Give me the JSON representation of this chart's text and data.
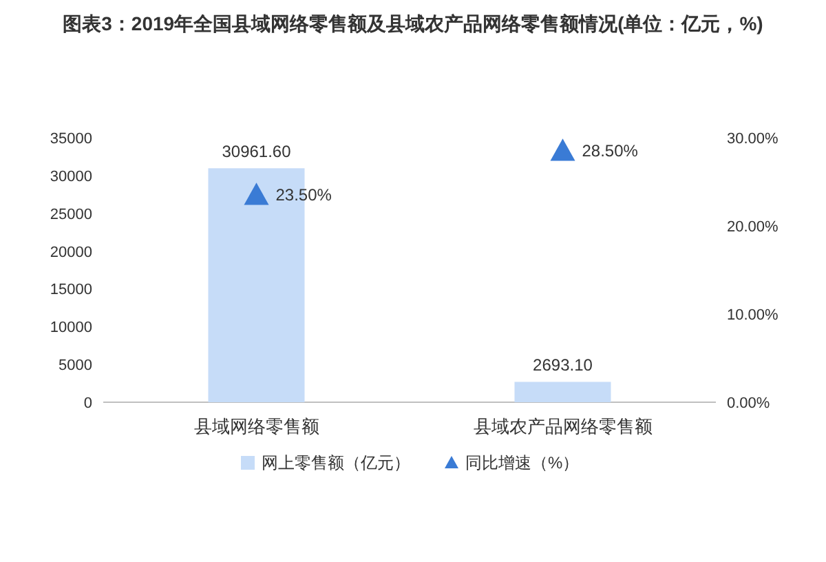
{
  "chart_data": {
    "type": "bar",
    "title": "图表3：2019年全国县域网络零售额及县域农产品网络零售额情况(单位：亿元，%)",
    "categories": [
      "县域网络零售额",
      "县域农产品网络零售额"
    ],
    "series": [
      {
        "name": "网上零售额（亿元）",
        "color": "#c6dcf8",
        "values": [
          30961.6,
          2693.1
        ],
        "value_labels": [
          "30961.60",
          "2693.10"
        ]
      },
      {
        "name": "同比增速（%）",
        "type": "scatter",
        "axis": "y2",
        "color": "#3a7bd5",
        "values": [
          23.5,
          28.5
        ],
        "value_labels": [
          "23.50%",
          "28.50%"
        ]
      }
    ],
    "marker": "triangle",
    "ylim": [
      0,
      35000
    ],
    "yticks": [
      0,
      5000,
      10000,
      15000,
      20000,
      25000,
      30000,
      35000
    ],
    "y2lim": [
      0,
      30
    ],
    "y2ticks": [
      {
        "value": 0,
        "label": "0.00%"
      },
      {
        "value": 10,
        "label": "10.00%"
      },
      {
        "value": 20,
        "label": "20.00%"
      },
      {
        "value": 30,
        "label": "30.00%"
      }
    ],
    "grid": false,
    "legend": "bottom"
  }
}
